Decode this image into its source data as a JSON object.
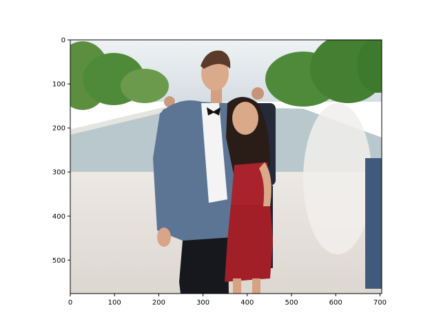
{
  "axes": {
    "x_ticks": [
      "0",
      "100",
      "200",
      "300",
      "400",
      "500",
      "600",
      "700"
    ],
    "y_ticks": [
      "0",
      "100",
      "200",
      "300",
      "400",
      "500"
    ],
    "x_range": [
      0,
      704
    ],
    "y_range": [
      576,
      0
    ]
  },
  "image": {
    "subject": "couple-portrait",
    "colors": {
      "sky": "#dfe6ea",
      "trees": "#4f8a3a",
      "pool": "#b9c8cc",
      "ground": "#e6e1dc",
      "suit": "#5d7595",
      "dress": "#a8232b",
      "hair": "#2a1c16",
      "skin": "#d9a988"
    }
  }
}
